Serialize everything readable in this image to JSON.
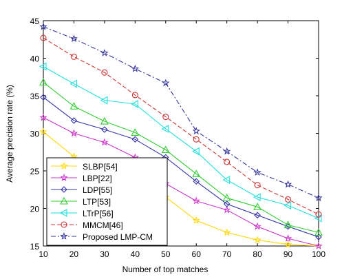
{
  "chart_data": {
    "type": "line",
    "title": "",
    "xlabel": "Number of top matches",
    "ylabel": "Average precision rate (%)",
    "xlim": [
      10,
      100
    ],
    "ylim": [
      15,
      45
    ],
    "x": [
      10,
      20,
      30,
      40,
      50,
      60,
      70,
      80,
      90,
      100
    ],
    "xticks": [
      "10",
      "20",
      "30",
      "40",
      "50",
      "60",
      "70",
      "80",
      "90",
      "100"
    ],
    "yticks": [
      "15",
      "20",
      "25",
      "30",
      "35",
      "40",
      "45"
    ],
    "grid": false,
    "legend_position": "bottom-left",
    "series": [
      {
        "name": "SLBP[54]",
        "color": "#ffd700",
        "marker": "star",
        "dash": "solid",
        "values": [
          30.2,
          26.9,
          25.0,
          23.6,
          21.5,
          18.4,
          16.8,
          15.8,
          15.2,
          15.0
        ]
      },
      {
        "name": "LBP[22]",
        "color": "#cc33cc",
        "marker": "star",
        "dash": "solid",
        "values": [
          32.1,
          30.0,
          28.8,
          26.8,
          23.3,
          21.0,
          19.8,
          17.6,
          16.0,
          15.0
        ]
      },
      {
        "name": "LDP[55]",
        "color": "#3333aa",
        "marker": "diamond",
        "dash": "solid",
        "values": [
          34.8,
          31.7,
          30.5,
          29.2,
          26.8,
          23.6,
          20.6,
          19.1,
          17.6,
          16.2
        ]
      },
      {
        "name": "LTP[53]",
        "color": "#33cc33",
        "marker": "triangle-up",
        "dash": "solid",
        "values": [
          36.8,
          33.6,
          31.6,
          30.1,
          27.8,
          24.6,
          21.4,
          20.2,
          17.8,
          16.8
        ]
      },
      {
        "name": "LTrP[56]",
        "color": "#22dddd",
        "marker": "triangle-left",
        "dash": "solid",
        "values": [
          38.9,
          36.6,
          34.4,
          33.9,
          30.6,
          27.6,
          23.8,
          21.5,
          20.4,
          18.7
        ]
      },
      {
        "name": "MMCM[46]",
        "color": "#cc3333",
        "marker": "circle",
        "dash": "dashed",
        "values": [
          42.7,
          40.2,
          38.1,
          35.1,
          32.2,
          29.2,
          26.2,
          23.1,
          21.2,
          19.2
        ]
      },
      {
        "name": "Proposed LMP-CM",
        "color": "#333399",
        "marker": "star",
        "dash": "dashdot",
        "values": [
          44.2,
          42.6,
          40.7,
          38.6,
          36.7,
          30.3,
          27.6,
          24.8,
          23.2,
          21.4
        ]
      }
    ]
  }
}
